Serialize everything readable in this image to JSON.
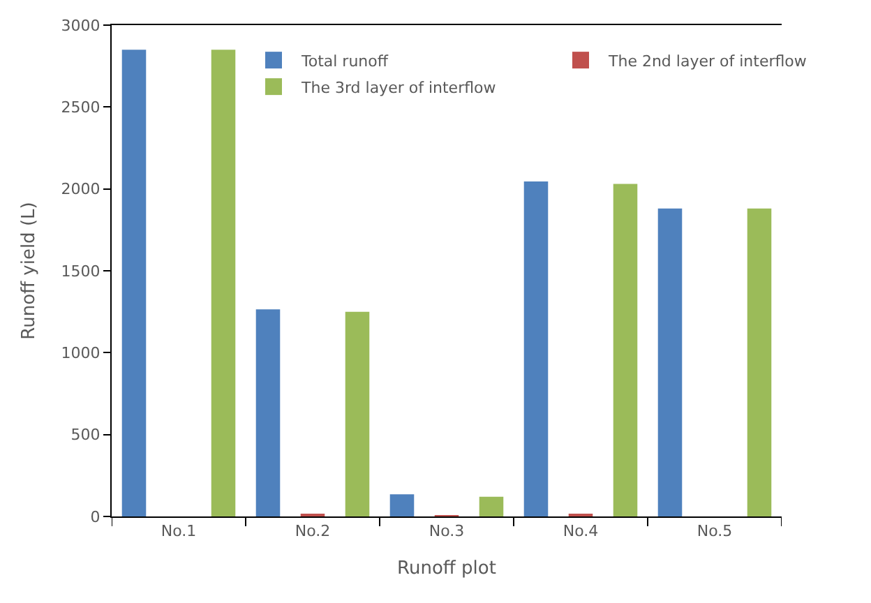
{
  "chart_data": {
    "type": "bar",
    "xlabel": "Runoff plot",
    "ylabel": "Runoff yield (L)",
    "categories": [
      "No.1",
      "No.2",
      "No.3",
      "No.4",
      "No.5"
    ],
    "series": [
      {
        "name": "Total runoff",
        "color": "#4f81bd",
        "values": [
          2850,
          1265,
          135,
          2045,
          1880
        ]
      },
      {
        "name": "The 2nd layer of interflow",
        "color": "#c0504d",
        "values": [
          null,
          15,
          8,
          15,
          null
        ]
      },
      {
        "name": "The 3rd layer of interflow",
        "color": "#9bbb59",
        "values": [
          2850,
          1250,
          120,
          2030,
          1880
        ]
      }
    ],
    "ylim": [
      0,
      3000
    ],
    "yticks": [
      0,
      500,
      1000,
      1500,
      2000,
      2500,
      3000
    ],
    "legend": "top"
  }
}
